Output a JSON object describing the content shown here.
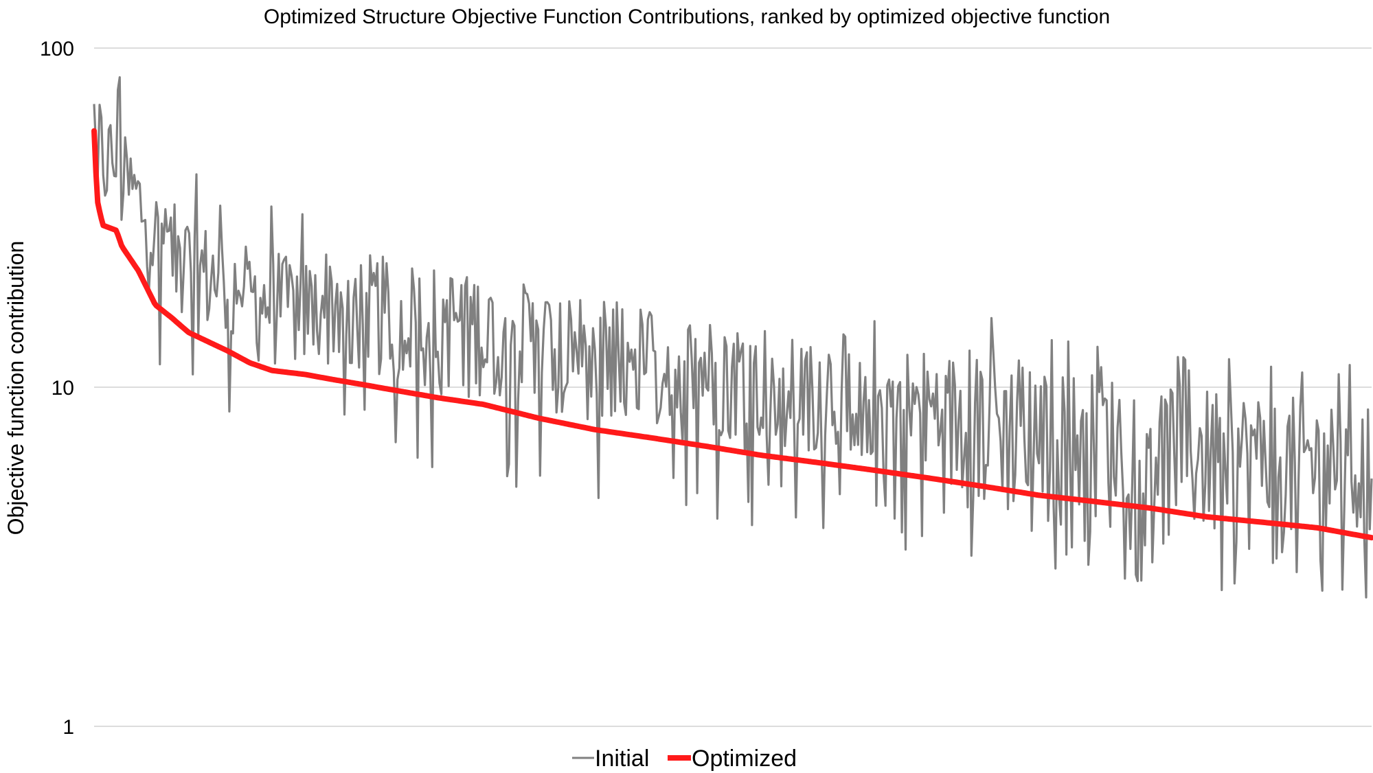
{
  "chart_data": {
    "type": "line",
    "title": "Optimized Structure Objective Function Contributions, ranked by optimized objective function",
    "xlabel": "",
    "ylabel": "Objective function contribution",
    "yscale": "log",
    "ylim": [
      1,
      100
    ],
    "yticks": [
      {
        "value": 1,
        "label": "1"
      },
      {
        "value": 10,
        "label": "10"
      },
      {
        "value": 100,
        "label": "100"
      }
    ],
    "grid": true,
    "legend_position": "bottom",
    "point_count": 700,
    "optimized_profile": [
      [
        0,
        57
      ],
      [
        1,
        56
      ],
      [
        2,
        37
      ],
      [
        4,
        34
      ],
      [
        8,
        30
      ],
      [
        20,
        29
      ],
      [
        25,
        26
      ],
      [
        40,
        22
      ],
      [
        55,
        17.5
      ],
      [
        70,
        16
      ],
      [
        85,
        14.5
      ],
      [
        105,
        13.5
      ],
      [
        120,
        12.8
      ],
      [
        140,
        11.8
      ],
      [
        160,
        11.2
      ],
      [
        190,
        10.9
      ],
      [
        210,
        10.6
      ],
      [
        240,
        10.2
      ],
      [
        270,
        9.8
      ],
      [
        310,
        9.3
      ],
      [
        350,
        8.9
      ],
      [
        400,
        8.1
      ],
      [
        450,
        7.5
      ],
      [
        500,
        7.1
      ],
      [
        550,
        6.7
      ],
      [
        600,
        6.3
      ],
      [
        650,
        6.0
      ],
      [
        700,
        5.7
      ],
      [
        750,
        5.4
      ],
      [
        800,
        5.1
      ],
      [
        850,
        4.8
      ],
      [
        900,
        4.6
      ],
      [
        950,
        4.4
      ],
      [
        1000,
        4.15
      ],
      [
        1050,
        4.0
      ],
      [
        1100,
        3.85
      ],
      [
        1149,
        3.6
      ]
    ],
    "series": [
      {
        "name": "Initial",
        "color": "#808080"
      },
      {
        "name": "Optimized",
        "color": "#ff1a1a"
      }
    ]
  }
}
